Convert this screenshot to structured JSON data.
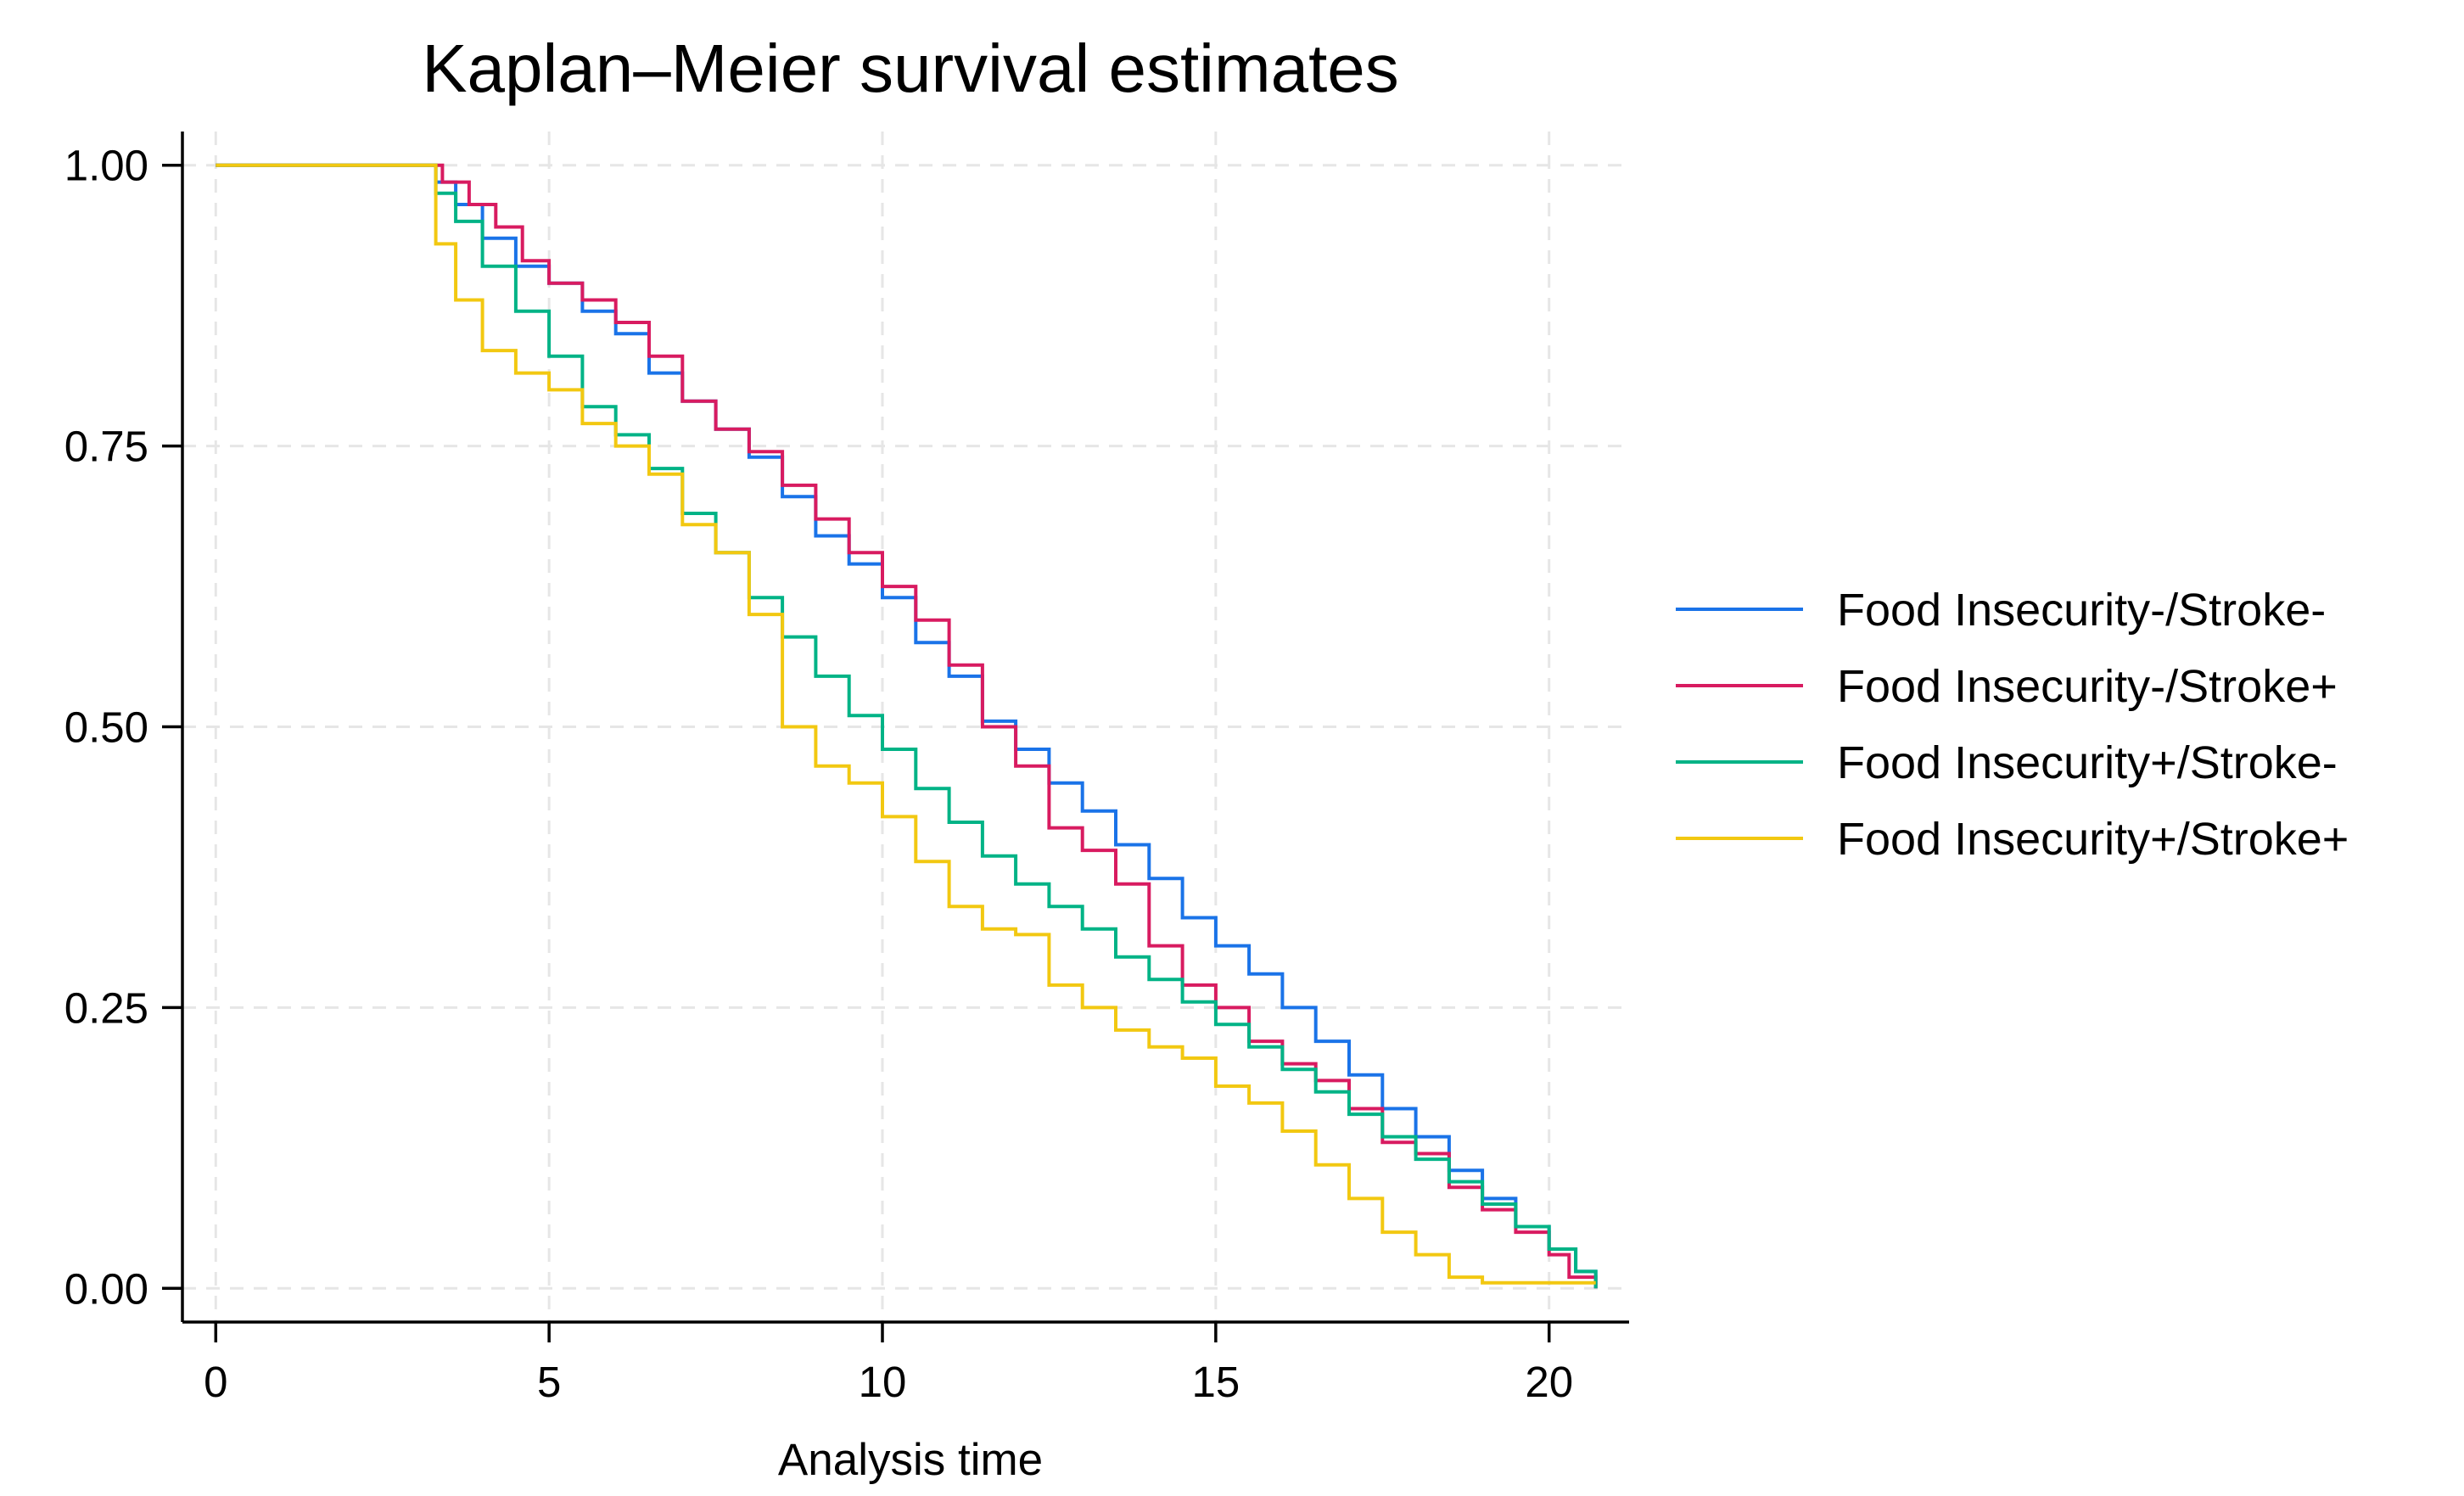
{
  "chart_data": {
    "type": "line",
    "step": true,
    "title": "Kaplan–Meier survival estimates",
    "xlabel": "Analysis time",
    "ylabel": "",
    "xlim": [
      -0.5,
      21.2
    ],
    "ylim": [
      -0.03,
      1.03
    ],
    "xticks": [
      0,
      5,
      10,
      15,
      20
    ],
    "xtick_labels": [
      "0",
      "5",
      "10",
      "15",
      "20"
    ],
    "yticks": [
      0,
      0.25,
      0.5,
      0.75,
      1.0
    ],
    "ytick_labels": [
      "0.00",
      "0.25",
      "0.50",
      "0.75",
      "1.00"
    ],
    "grid": true,
    "legend_position": "right",
    "series": [
      {
        "name": "Food Insecurity-/Stroke-",
        "color": "#1a73e8",
        "points": [
          [
            0,
            1.0
          ],
          [
            3.1,
            1.0
          ],
          [
            3.3,
            0.985
          ],
          [
            3.6,
            0.965
          ],
          [
            4.0,
            0.935
          ],
          [
            4.5,
            0.91
          ],
          [
            5.0,
            0.895
          ],
          [
            5.5,
            0.87
          ],
          [
            6.0,
            0.85
          ],
          [
            6.5,
            0.815
          ],
          [
            7.0,
            0.79
          ],
          [
            7.5,
            0.765
          ],
          [
            8.0,
            0.74
          ],
          [
            8.5,
            0.705
          ],
          [
            9.0,
            0.67
          ],
          [
            9.5,
            0.645
          ],
          [
            10.0,
            0.615
          ],
          [
            10.5,
            0.575
          ],
          [
            11.0,
            0.545
          ],
          [
            11.5,
            0.505
          ],
          [
            12.0,
            0.48
          ],
          [
            12.5,
            0.45
          ],
          [
            13.0,
            0.425
          ],
          [
            13.5,
            0.395
          ],
          [
            14.0,
            0.365
          ],
          [
            14.5,
            0.33
          ],
          [
            15.0,
            0.305
          ],
          [
            15.5,
            0.28
          ],
          [
            16.0,
            0.25
          ],
          [
            16.5,
            0.22
          ],
          [
            17.0,
            0.19
          ],
          [
            17.5,
            0.16
          ],
          [
            18.0,
            0.135
          ],
          [
            18.5,
            0.105
          ],
          [
            19.0,
            0.08
          ],
          [
            19.5,
            0.055
          ],
          [
            20.0,
            0.035
          ],
          [
            20.4,
            0.015
          ],
          [
            20.7,
            0.0
          ]
        ]
      },
      {
        "name": "Food Insecurity-/Stroke+",
        "color": "#d81b60",
        "points": [
          [
            0,
            1.0
          ],
          [
            3.1,
            1.0
          ],
          [
            3.4,
            0.985
          ],
          [
            3.8,
            0.965
          ],
          [
            4.2,
            0.945
          ],
          [
            4.6,
            0.915
          ],
          [
            5.0,
            0.895
          ],
          [
            5.5,
            0.88
          ],
          [
            6.0,
            0.86
          ],
          [
            6.5,
            0.83
          ],
          [
            7.0,
            0.79
          ],
          [
            7.5,
            0.765
          ],
          [
            8.0,
            0.745
          ],
          [
            8.5,
            0.715
          ],
          [
            9.0,
            0.685
          ],
          [
            9.5,
            0.655
          ],
          [
            10.0,
            0.625
          ],
          [
            10.5,
            0.595
          ],
          [
            11.0,
            0.555
          ],
          [
            11.5,
            0.5
          ],
          [
            12.0,
            0.465
          ],
          [
            12.5,
            0.41
          ],
          [
            13.0,
            0.39
          ],
          [
            13.5,
            0.36
          ],
          [
            14.0,
            0.305
          ],
          [
            14.5,
            0.27
          ],
          [
            15.0,
            0.25
          ],
          [
            15.5,
            0.22
          ],
          [
            16.0,
            0.2
          ],
          [
            16.5,
            0.185
          ],
          [
            17.0,
            0.16
          ],
          [
            17.5,
            0.13
          ],
          [
            18.0,
            0.12
          ],
          [
            18.5,
            0.09
          ],
          [
            19.0,
            0.07
          ],
          [
            19.5,
            0.05
          ],
          [
            20.0,
            0.03
          ],
          [
            20.3,
            0.01
          ],
          [
            20.7,
            0.0
          ]
        ]
      },
      {
        "name": "Food Insecurity+/Stroke-",
        "color": "#00b386",
        "points": [
          [
            0,
            1.0
          ],
          [
            3.1,
            1.0
          ],
          [
            3.3,
            0.975
          ],
          [
            3.6,
            0.95
          ],
          [
            4.0,
            0.91
          ],
          [
            4.5,
            0.87
          ],
          [
            5.0,
            0.83
          ],
          [
            5.5,
            0.785
          ],
          [
            6.0,
            0.76
          ],
          [
            6.5,
            0.73
          ],
          [
            7.0,
            0.69
          ],
          [
            7.5,
            0.655
          ],
          [
            8.0,
            0.615
          ],
          [
            8.5,
            0.58
          ],
          [
            9.0,
            0.545
          ],
          [
            9.5,
            0.51
          ],
          [
            10.0,
            0.48
          ],
          [
            10.5,
            0.445
          ],
          [
            11.0,
            0.415
          ],
          [
            11.5,
            0.385
          ],
          [
            12.0,
            0.36
          ],
          [
            12.5,
            0.34
          ],
          [
            13.0,
            0.32
          ],
          [
            13.5,
            0.295
          ],
          [
            14.0,
            0.275
          ],
          [
            14.5,
            0.255
          ],
          [
            15.0,
            0.235
          ],
          [
            15.5,
            0.215
          ],
          [
            16.0,
            0.195
          ],
          [
            16.5,
            0.175
          ],
          [
            17.0,
            0.155
          ],
          [
            17.5,
            0.135
          ],
          [
            18.0,
            0.115
          ],
          [
            18.5,
            0.095
          ],
          [
            19.0,
            0.075
          ],
          [
            19.5,
            0.055
          ],
          [
            20.0,
            0.035
          ],
          [
            20.4,
            0.015
          ],
          [
            20.7,
            0.0
          ]
        ]
      },
      {
        "name": "Food Insecurity+/Stroke+",
        "color": "#f2c811",
        "points": [
          [
            0,
            1.0
          ],
          [
            3.1,
            1.0
          ],
          [
            3.3,
            0.93
          ],
          [
            3.6,
            0.88
          ],
          [
            4.0,
            0.835
          ],
          [
            4.5,
            0.815
          ],
          [
            5.0,
            0.8
          ],
          [
            5.5,
            0.77
          ],
          [
            6.0,
            0.75
          ],
          [
            6.5,
            0.725
          ],
          [
            7.0,
            0.68
          ],
          [
            7.5,
            0.655
          ],
          [
            8.0,
            0.6
          ],
          [
            8.5,
            0.5
          ],
          [
            9.0,
            0.465
          ],
          [
            9.5,
            0.45
          ],
          [
            10.0,
            0.42
          ],
          [
            10.5,
            0.38
          ],
          [
            11.0,
            0.34
          ],
          [
            11.5,
            0.32
          ],
          [
            12.0,
            0.315
          ],
          [
            12.5,
            0.27
          ],
          [
            13.0,
            0.25
          ],
          [
            13.5,
            0.23
          ],
          [
            14.0,
            0.215
          ],
          [
            14.5,
            0.205
          ],
          [
            15.0,
            0.18
          ],
          [
            15.5,
            0.165
          ],
          [
            16.0,
            0.14
          ],
          [
            16.5,
            0.11
          ],
          [
            17.0,
            0.08
          ],
          [
            17.5,
            0.05
          ],
          [
            18.0,
            0.03
          ],
          [
            18.5,
            0.01
          ],
          [
            19.0,
            0.005
          ],
          [
            20.7,
            0.005
          ]
        ]
      }
    ]
  }
}
